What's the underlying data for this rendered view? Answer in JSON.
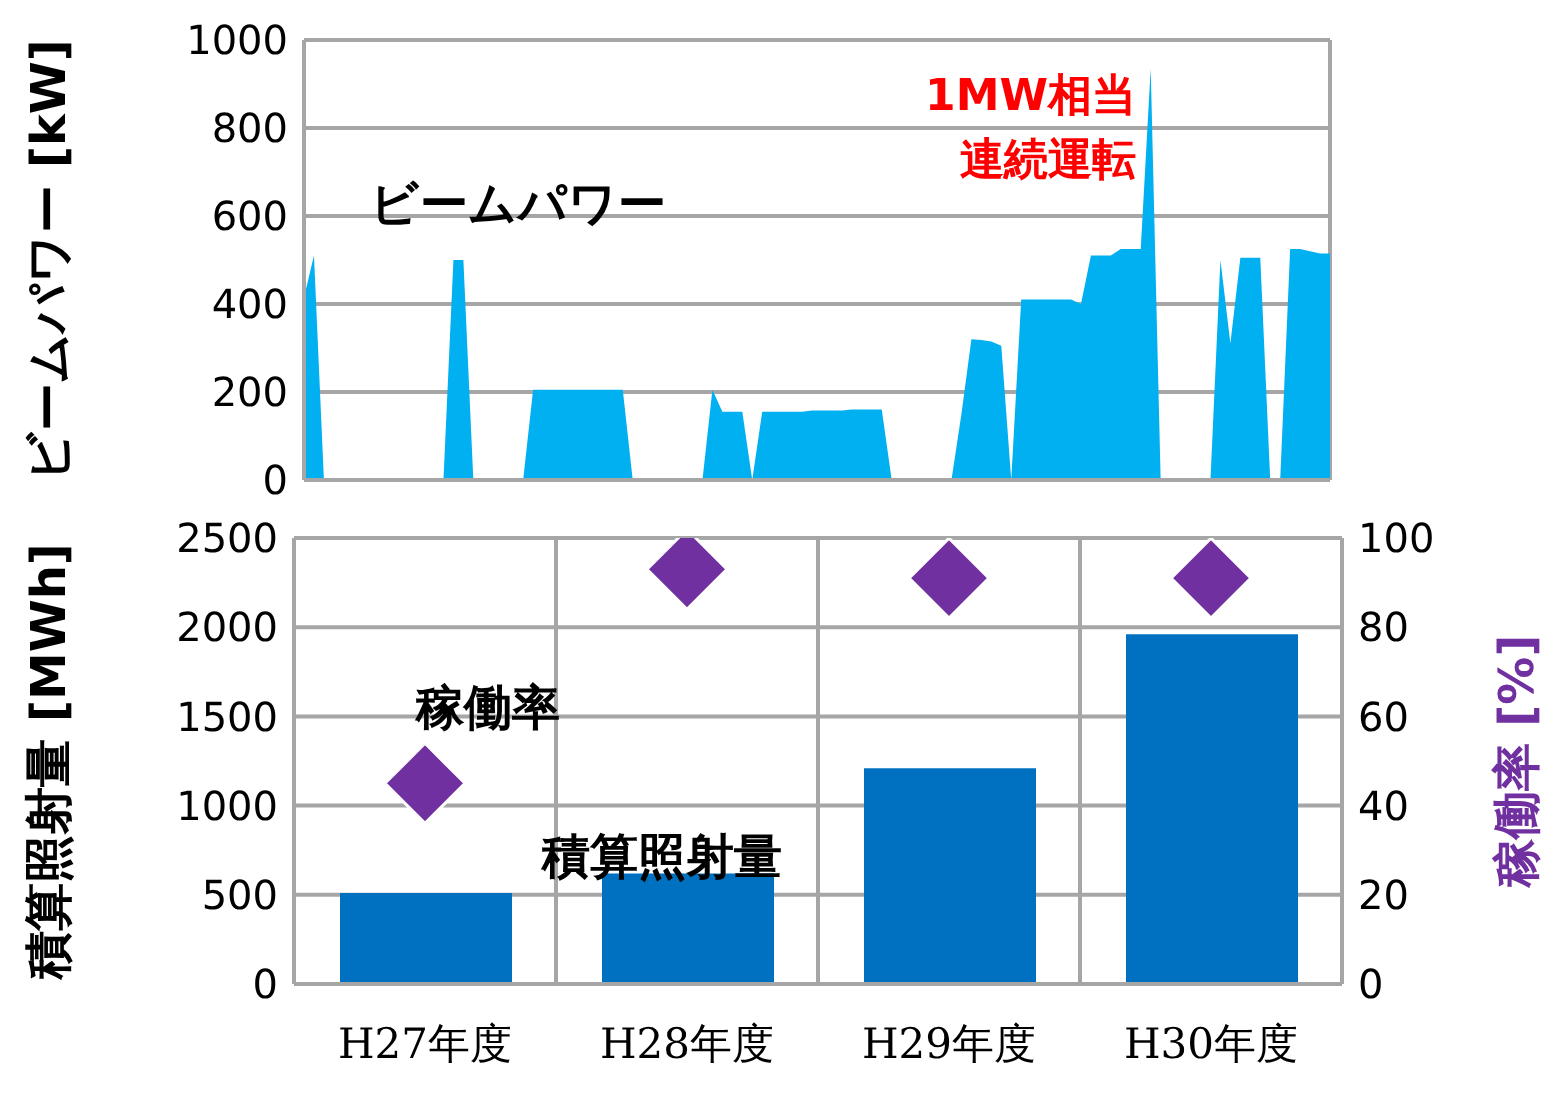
{
  "chart_data": [
    {
      "type": "area",
      "ylabel": "ビームパワー [kW]",
      "categories": [
        null,
        null,
        null,
        null,
        null,
        null,
        null,
        null,
        null,
        null,
        null,
        null,
        null,
        null,
        null,
        null,
        null,
        null,
        null,
        null,
        null,
        null,
        null,
        null,
        null,
        null,
        null,
        null,
        null,
        null,
        null,
        null,
        null,
        null,
        null,
        null,
        null,
        null,
        null,
        null,
        null,
        null,
        null,
        null,
        null,
        null,
        null,
        null,
        null,
        null,
        null,
        null,
        null,
        null,
        null,
        null,
        null,
        null,
        null,
        null,
        null,
        null,
        null,
        null,
        null,
        null,
        null,
        null,
        null,
        null,
        null,
        null,
        null,
        null,
        null,
        null,
        null,
        null,
        null,
        null,
        null,
        null,
        null,
        null,
        null,
        null,
        null,
        null,
        null,
        null,
        null,
        null,
        null,
        null,
        null,
        null,
        null,
        null,
        null,
        null,
        null,
        null,
        null,
        null
      ],
      "ylim": [
        0,
        1000
      ],
      "yticks": [
        0,
        200,
        400,
        600,
        800,
        1000
      ],
      "grid": "y",
      "series": [
        {
          "name": "ビームパワー",
          "color": "#00b0f0",
          "values": [
            415,
            510,
            0,
            0,
            0,
            0,
            0,
            0,
            0,
            0,
            0,
            0,
            0,
            0,
            0,
            500,
            500,
            0,
            0,
            0,
            0,
            0,
            0,
            205,
            205,
            205,
            205,
            205,
            205,
            205,
            205,
            205,
            205,
            0,
            0,
            0,
            0,
            0,
            0,
            0,
            0,
            205,
            155,
            155,
            155,
            0,
            155,
            155,
            155,
            155,
            155,
            158,
            158,
            158,
            158,
            160,
            160,
            160,
            160,
            0,
            0,
            0,
            0,
            0,
            0,
            0,
            150,
            320,
            318,
            315,
            305,
            0,
            410,
            410,
            410,
            410,
            410,
            410,
            400,
            510,
            510,
            510,
            525,
            525,
            525,
            935,
            0,
            0,
            0,
            0,
            0,
            0,
            500,
            310,
            505,
            505,
            505,
            0,
            0,
            525,
            525,
            520,
            515,
            515
          ]
        }
      ],
      "annotations": [
        "1MW相当",
        "連続運転"
      ]
    },
    {
      "type": "bar",
      "categories": [
        "H27年度",
        "H28年度",
        "H29年度",
        "H30年度"
      ],
      "ylabel": "積算照射量 [MWh]",
      "y2label": "稼働率 [%]",
      "ylim": [
        0,
        2500
      ],
      "yticks": [
        0,
        500,
        1000,
        1500,
        2000,
        2500
      ],
      "y2lim": [
        0,
        100
      ],
      "y2ticks": [
        0,
        20,
        40,
        60,
        80,
        100
      ],
      "grid": true,
      "marker": "diamond",
      "series": [
        {
          "name": "積算照射量",
          "color": "#0070c0",
          "values": [
            510,
            620,
            1210,
            1960
          ]
        },
        {
          "name": "稼働率",
          "type": "scatter",
          "axis": "y2",
          "color": "#7030a0",
          "values": [
            45,
            93,
            91,
            91
          ]
        }
      ]
    }
  ]
}
